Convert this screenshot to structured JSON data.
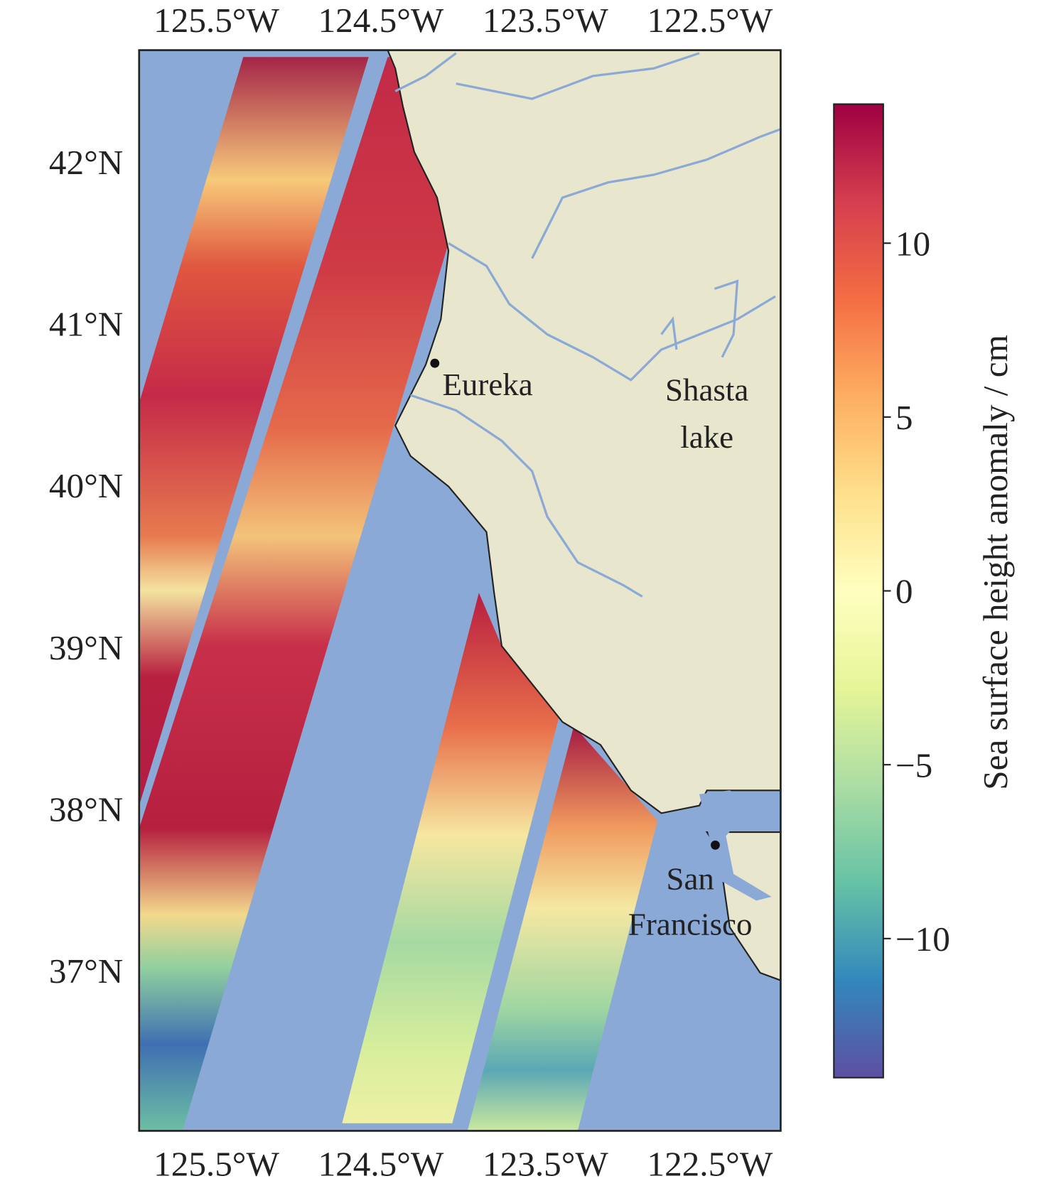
{
  "map": {
    "lon_ticks": [
      {
        "value": -125.5,
        "label": "125.5°W"
      },
      {
        "value": -124.5,
        "label": "124.5°W"
      },
      {
        "value": -123.5,
        "label": "123.5°W"
      },
      {
        "value": -122.5,
        "label": "122.5°W"
      }
    ],
    "lat_ticks": [
      {
        "value": 42,
        "label": "42°N"
      },
      {
        "value": 41,
        "label": "41°N"
      },
      {
        "value": 40,
        "label": "40°N"
      },
      {
        "value": 39,
        "label": "39°N"
      },
      {
        "value": 38,
        "label": "38°N"
      },
      {
        "value": 37,
        "label": "37°N"
      }
    ],
    "lon_range": [
      -125.97,
      -122.07
    ],
    "lat_range": [
      36.01,
      42.69
    ],
    "places": [
      {
        "lines": [
          "Eureka"
        ]
      },
      {
        "lines": [
          "Shasta",
          "lake"
        ]
      },
      {
        "lines": [
          "San",
          "Francisco"
        ]
      }
    ]
  },
  "colorbar": {
    "label": "Sea surface height anomaly / cm",
    "range": [
      -14,
      14
    ],
    "ticks": [
      10,
      5,
      0,
      {
        "value": -5,
        "label": "−5"
      },
      {
        "value": -10,
        "label": "−10"
      }
    ],
    "colors": [
      "#5e4fa2",
      "#3288bd",
      "#66c2a5",
      "#abdda4",
      "#e6f598",
      "#ffffbf",
      "#fee08b",
      "#fdae61",
      "#f46d43",
      "#d53e4f",
      "#9e0142"
    ]
  }
}
